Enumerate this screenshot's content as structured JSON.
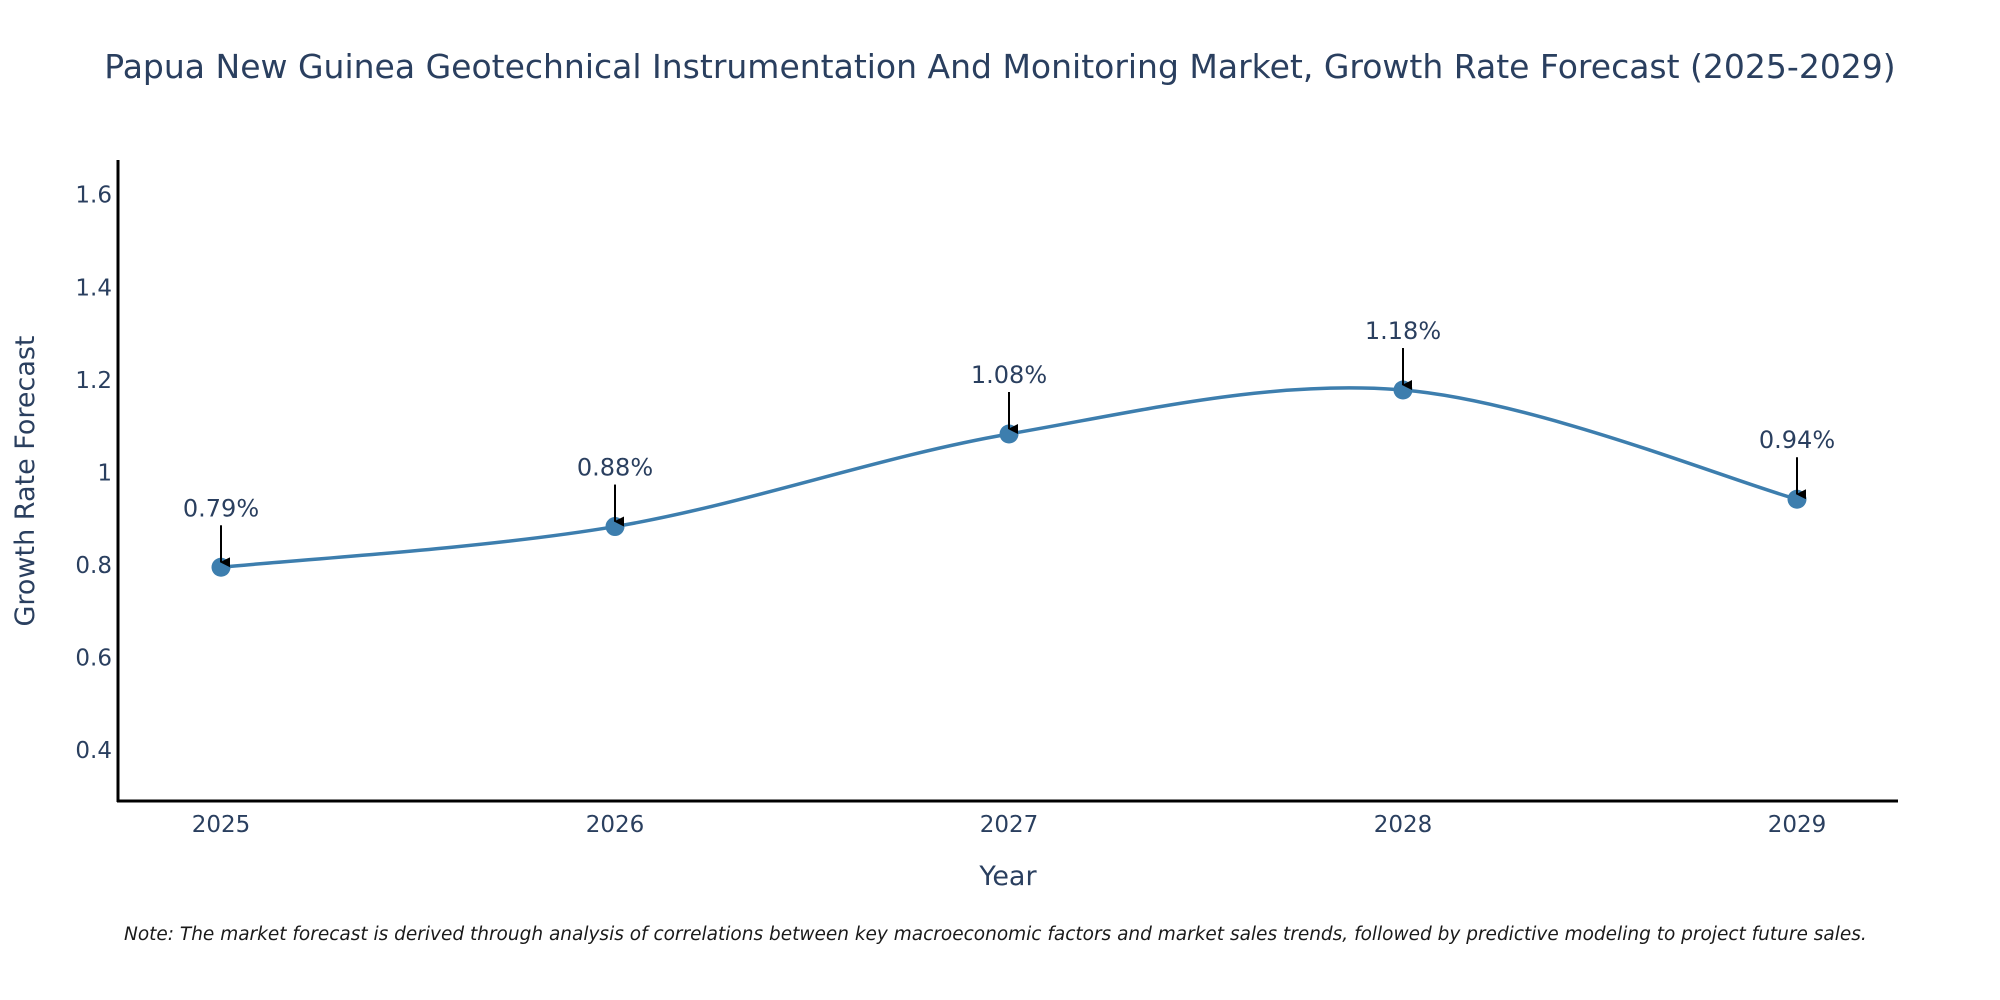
{
  "chart_data": {
    "type": "line",
    "title": "Papua New Guinea Geotechnical Instrumentation And Monitoring Market, Growth Rate Forecast (2025-2029)",
    "xlabel": "Year",
    "ylabel": "Growth Rate Forecast",
    "categories": [
      "2025",
      "2026",
      "2027",
      "2028",
      "2029"
    ],
    "series": [
      {
        "name": "Growth Rate Forecast",
        "values": [
          0.795,
          0.883,
          1.083,
          1.178,
          0.942
        ],
        "labels": [
          "0.79%",
          "0.88%",
          "1.08%",
          "1.18%",
          "0.94%"
        ],
        "color": "#3d7eae"
      }
    ],
    "ylim": [
      0.29,
      1.675
    ],
    "yticks": [
      0.4,
      0.6,
      0.8,
      1,
      1.2,
      1.4,
      1.6
    ],
    "ytick_labels": [
      "0.4",
      "0.6",
      "0.8",
      "1",
      "1.2",
      "1.4",
      "1.6"
    ],
    "grid": false,
    "line_shape": "spline",
    "annotation_arrow_color": "#000000"
  },
  "note": "Note: The market forecast is derived through analysis of correlations between key macroeconomic factors and market sales trends, followed by predictive modeling to project future sales."
}
